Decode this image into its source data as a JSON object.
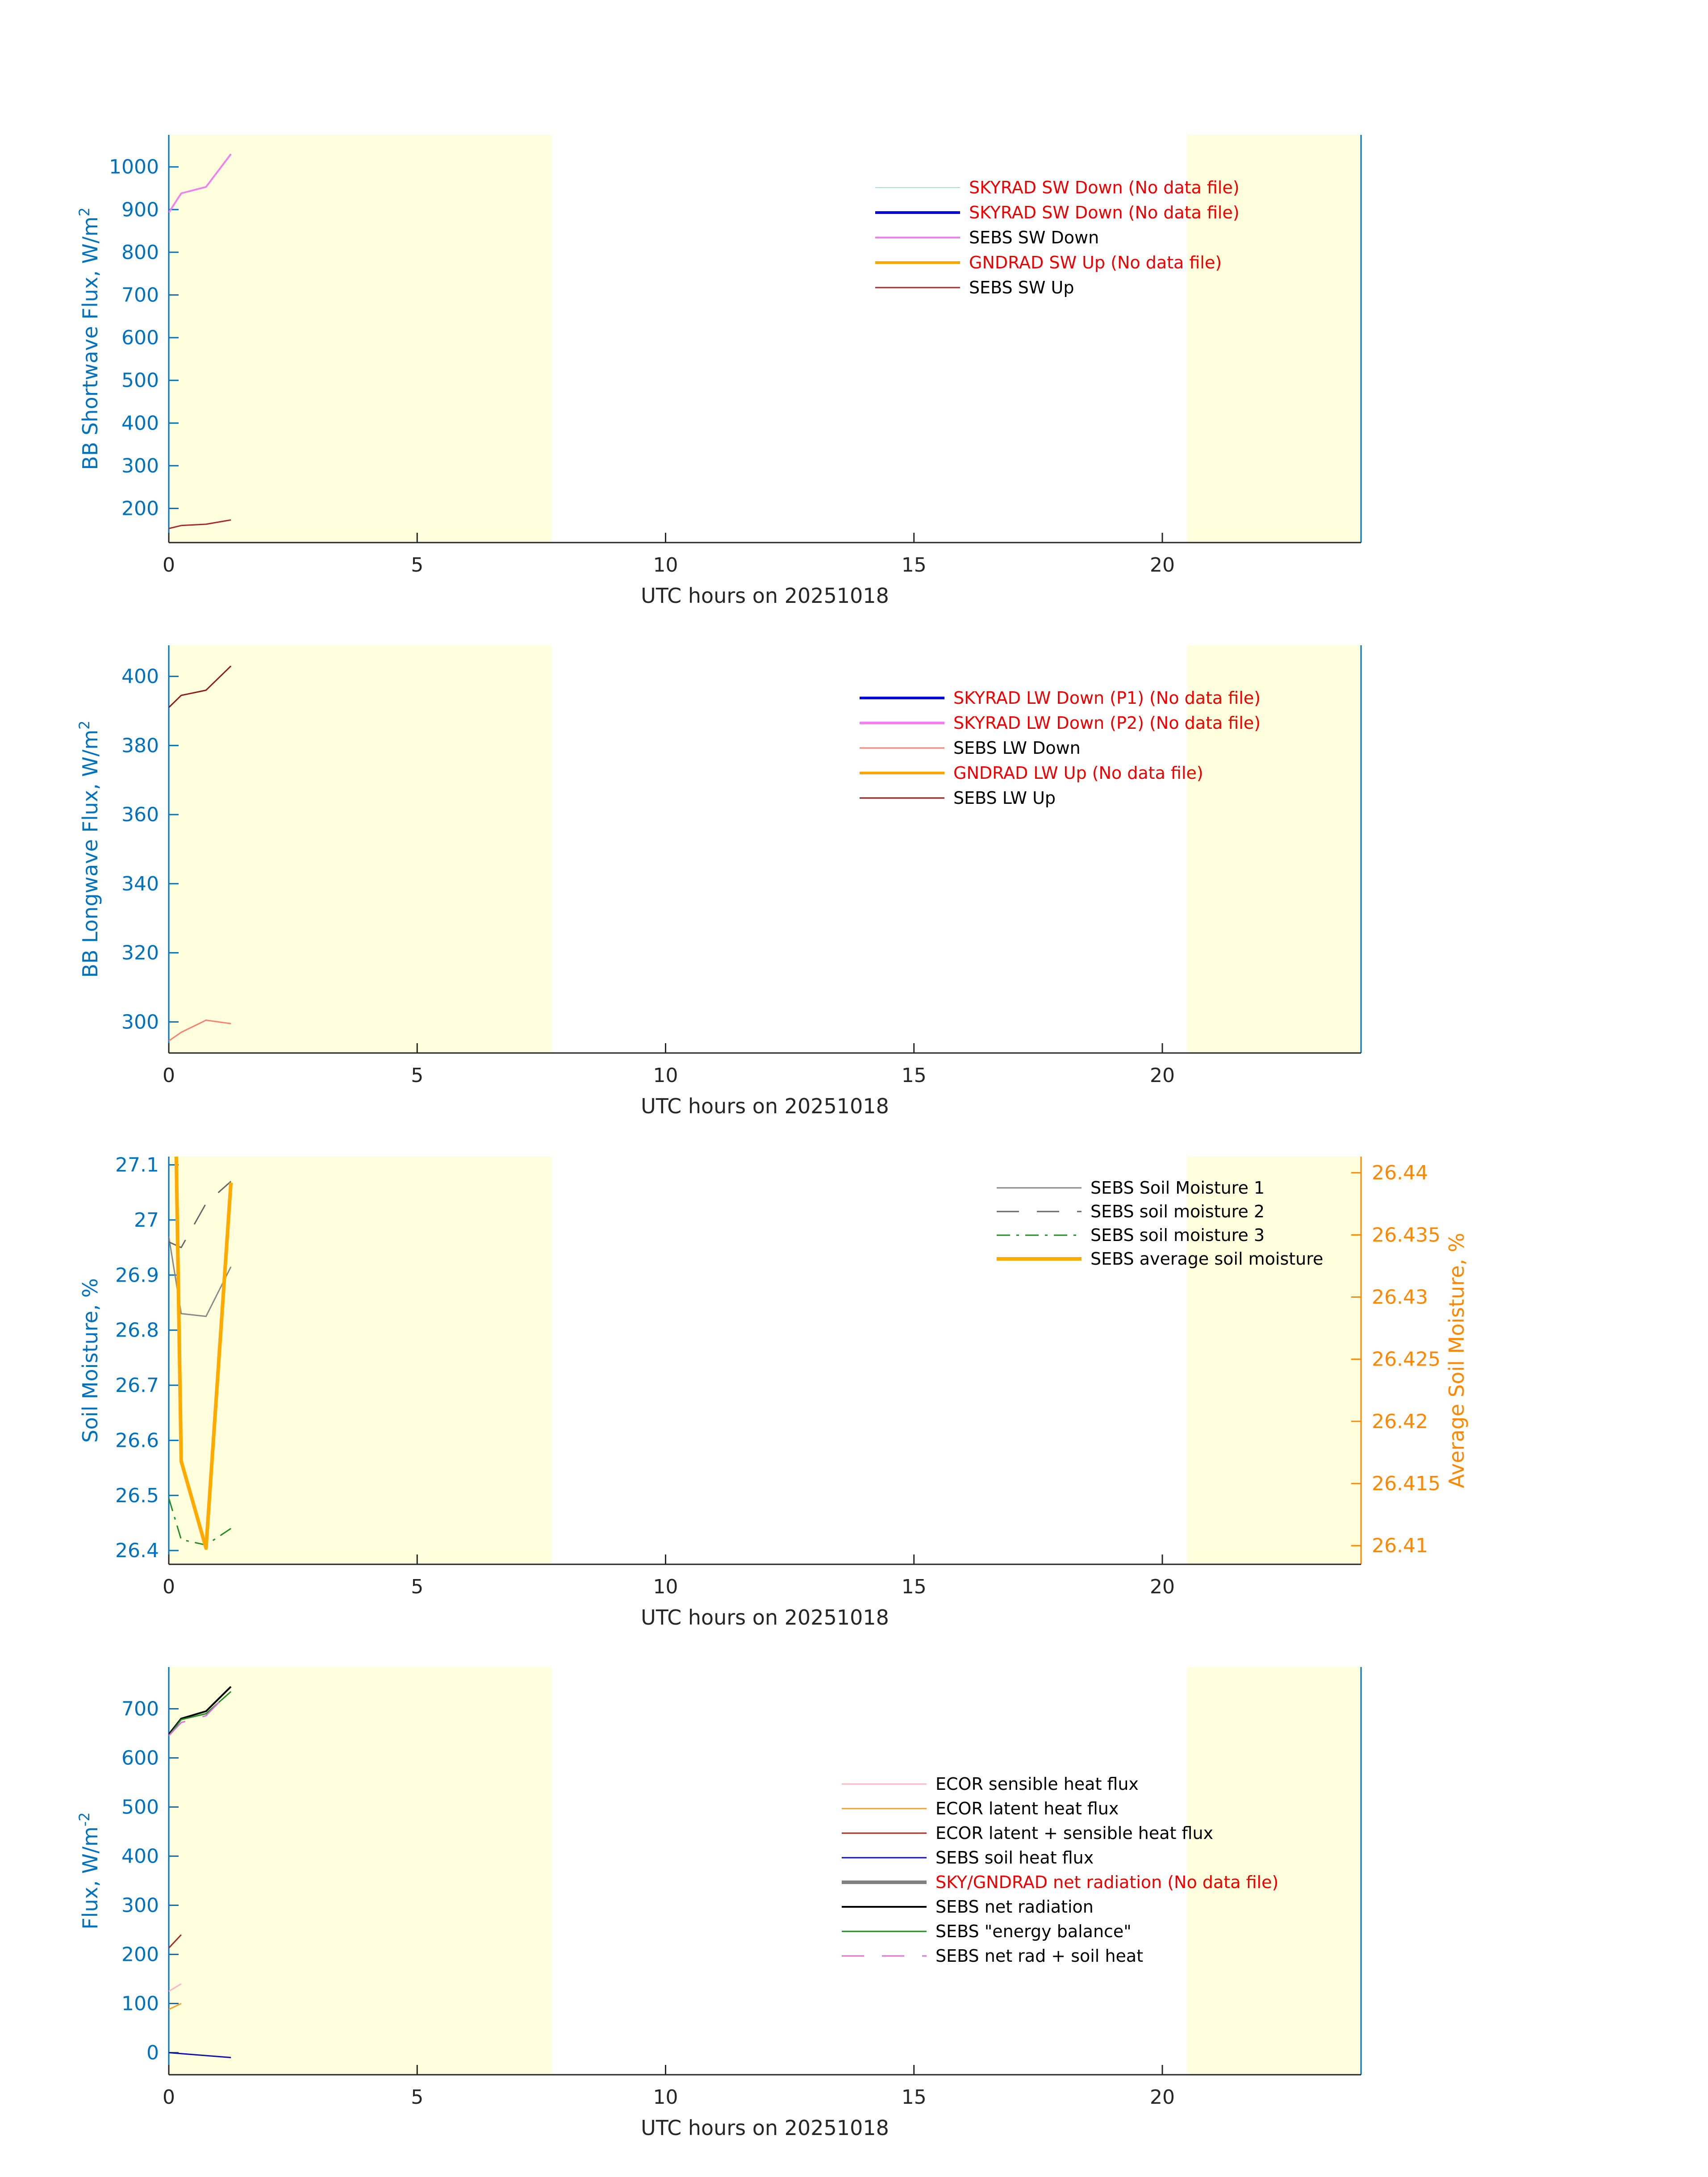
{
  "chart_data": [
    {
      "type": "line",
      "xlabel": "UTC hours on 20251018",
      "ylabel": "BB Shortwave Flux, W/m",
      "ylabel_sup": "2",
      "xlim": [
        0,
        24
      ],
      "ylim": [
        120,
        1075
      ],
      "xticks": [
        0,
        5,
        10,
        15,
        20
      ],
      "yticks": [
        200,
        300,
        400,
        500,
        600,
        700,
        800,
        900,
        1000
      ],
      "night_spans": [
        [
          0,
          7.7
        ],
        [
          20.5,
          24
        ]
      ],
      "legend_position": "top-right",
      "series": [
        {
          "name": "SKYRAD SW Down (No data file)",
          "no_data": true,
          "color": "#a8dde0",
          "width": 2,
          "dash": "",
          "x": [],
          "y": []
        },
        {
          "name": "SKYRAD SW Down (No data file)",
          "no_data": true,
          "color": "#0000dd",
          "width": 6,
          "dash": "",
          "x": [],
          "y": []
        },
        {
          "name": "SEBS SW Down",
          "no_data": false,
          "color": "#ee82ee",
          "width": 4,
          "dash": "",
          "x": [
            0,
            0.25,
            0.75,
            1.25
          ],
          "y": [
            893,
            938,
            953,
            1030
          ]
        },
        {
          "name": "GNDRAD SW Up (No data file)",
          "no_data": true,
          "color": "#ffa500",
          "width": 6,
          "dash": "",
          "x": [],
          "y": []
        },
        {
          "name": "SEBS SW Up",
          "no_data": false,
          "color": "#a52a2a",
          "width": 3,
          "dash": "",
          "x": [
            0,
            0.25,
            0.75,
            1.25
          ],
          "y": [
            153,
            160,
            163,
            173
          ]
        }
      ]
    },
    {
      "type": "line",
      "xlabel": "UTC hours on 20251018",
      "ylabel": "BB Longwave Flux, W/m",
      "ylabel_sup": "2",
      "xlim": [
        0,
        24
      ],
      "ylim": [
        291,
        409
      ],
      "xticks": [
        0,
        5,
        10,
        15,
        20
      ],
      "yticks": [
        300,
        320,
        340,
        360,
        380,
        400
      ],
      "night_spans": [
        [
          0,
          7.7
        ],
        [
          20.5,
          24
        ]
      ],
      "legend_position": "top-right",
      "series": [
        {
          "name": "SKYRAD LW Down (P1) (No data file)",
          "no_data": true,
          "color": "#0000dd",
          "width": 6,
          "dash": "",
          "x": [],
          "y": []
        },
        {
          "name": "SKYRAD LW Down (P2) (No data file)",
          "no_data": true,
          "color": "#ee82ee",
          "width": 6,
          "dash": "",
          "x": [],
          "y": []
        },
        {
          "name": "SEBS LW Down",
          "no_data": false,
          "color": "#fa8072",
          "width": 3,
          "dash": "",
          "x": [
            0,
            0.25,
            0.75,
            1.25
          ],
          "y": [
            294.5,
            297,
            300.5,
            299.5
          ]
        },
        {
          "name": "GNDRAD LW Up (No data file)",
          "no_data": true,
          "color": "#ffa500",
          "width": 6,
          "dash": "",
          "x": [],
          "y": []
        },
        {
          "name": "SEBS LW Up",
          "no_data": false,
          "color": "#8b1a1a",
          "width": 3,
          "dash": "",
          "x": [
            0,
            0.25,
            0.75,
            1.25
          ],
          "y": [
            391,
            394.5,
            396,
            403
          ]
        }
      ]
    },
    {
      "type": "line",
      "xlabel": "UTC hours on 20251018",
      "ylabel": "Soil Moisture, %",
      "ylabel_right": "Average Soil Moisture, %",
      "right_axis_color": "#ff8800",
      "xlim": [
        0,
        24
      ],
      "ylim": [
        26.375,
        27.115
      ],
      "ylim_right": [
        26.4085,
        26.4413
      ],
      "xticks": [
        0,
        5,
        10,
        15,
        20
      ],
      "yticks": [
        26.4,
        26.5,
        26.6,
        26.7,
        26.8,
        26.9,
        27,
        27.1
      ],
      "ytick_labels": [
        "26.4",
        "26.5",
        "26.6",
        "26.7",
        "26.8",
        "26.9",
        "27",
        "27.1"
      ],
      "yticks_right": [
        26.41,
        26.415,
        26.42,
        26.425,
        26.43,
        26.435,
        26.44
      ],
      "ytick_labels_right": [
        "26.41",
        "26.415",
        "26.42",
        "26.425",
        "26.43",
        "26.435",
        "26.44"
      ],
      "night_spans": [
        [
          0,
          7.7
        ],
        [
          20.5,
          24
        ]
      ],
      "legend_position": "top-right",
      "series": [
        {
          "name": "SEBS Soil Moisture 1",
          "no_data": false,
          "axis": "left",
          "color": "#888888",
          "width": 3,
          "dash": "",
          "x": [
            0,
            0.25,
            0.75,
            1.25
          ],
          "y": [
            26.97,
            26.83,
            26.825,
            26.915
          ]
        },
        {
          "name": "SEBS soil moisture 2",
          "no_data": false,
          "axis": "left",
          "color": "#666666",
          "width": 3,
          "dash": "50,40",
          "x": [
            0,
            0.25,
            0.75,
            1.25
          ],
          "y": [
            26.96,
            26.95,
            27.03,
            27.07
          ]
        },
        {
          "name": "SEBS soil moisture 3",
          "no_data": false,
          "axis": "left",
          "color": "#228b22",
          "width": 3,
          "dash": "30,14,6,14",
          "x": [
            0,
            0.25,
            0.75,
            1.25
          ],
          "y": [
            26.495,
            26.42,
            26.41,
            26.44
          ]
        },
        {
          "name": "SEBS average soil moisture",
          "no_data": false,
          "axis": "right",
          "color": "#ffaa00",
          "width": 8,
          "dash": "",
          "x": [
            0.15,
            0.25,
            0.75,
            1.25
          ],
          "y": [
            26.4413,
            26.4168,
            26.4098,
            26.4392
          ]
        }
      ]
    },
    {
      "type": "line",
      "xlabel": "UTC hours on 20251018",
      "ylabel": "Flux, W/m",
      "ylabel_sup": "-2",
      "xlim": [
        0,
        24
      ],
      "ylim": [
        -45,
        785
      ],
      "xticks": [
        0,
        5,
        10,
        15,
        20
      ],
      "yticks": [
        0,
        100,
        200,
        300,
        400,
        500,
        600,
        700
      ],
      "night_spans": [
        [
          0,
          7.7
        ],
        [
          20.5,
          24
        ]
      ],
      "legend_position": "right",
      "series": [
        {
          "name": "ECOR sensible heat flux",
          "no_data": false,
          "color": "#ffb6c1",
          "width": 3,
          "dash": "",
          "x": [
            0,
            0.25
          ],
          "y": [
            125,
            140
          ]
        },
        {
          "name": "ECOR latent heat flux",
          "no_data": false,
          "color": "#f0a030",
          "width": 3,
          "dash": "",
          "x": [
            0,
            0.25
          ],
          "y": [
            88,
            100
          ]
        },
        {
          "name": "ECOR latent + sensible heat flux",
          "no_data": false,
          "color": "#a52a2a",
          "width": 3,
          "dash": "",
          "x": [
            0,
            0.25
          ],
          "y": [
            213,
            240
          ]
        },
        {
          "name": "SEBS soil heat flux",
          "no_data": false,
          "color": "#1010aa",
          "width": 3,
          "dash": "",
          "x": [
            0,
            0.25,
            0.75,
            1.25
          ],
          "y": [
            0,
            -2,
            -6,
            -10
          ]
        },
        {
          "name": "SKY/GNDRAD net radiation (No data file)",
          "no_data": true,
          "color": "#808080",
          "width": 8,
          "dash": "",
          "x": [],
          "y": []
        },
        {
          "name": "SEBS net radiation",
          "no_data": false,
          "color": "#000000",
          "width": 4,
          "dash": "",
          "x": [
            0,
            0.25,
            0.75,
            1.25
          ],
          "y": [
            648,
            680,
            695,
            745
          ]
        },
        {
          "name": "SEBS \"energy balance\"",
          "no_data": false,
          "color": "#228b22",
          "width": 3,
          "dash": "",
          "x": [
            0,
            0.25,
            0.75,
            1.25
          ],
          "y": [
            645,
            678,
            690,
            735
          ]
        },
        {
          "name": "SEBS net rad + soil heat",
          "no_data": false,
          "color": "#da70d6",
          "width": 3,
          "dash": "50,40",
          "x": [
            0,
            0.25,
            0.75,
            1.25
          ],
          "y": [
            645,
            672,
            686,
            738
          ]
        }
      ]
    }
  ]
}
